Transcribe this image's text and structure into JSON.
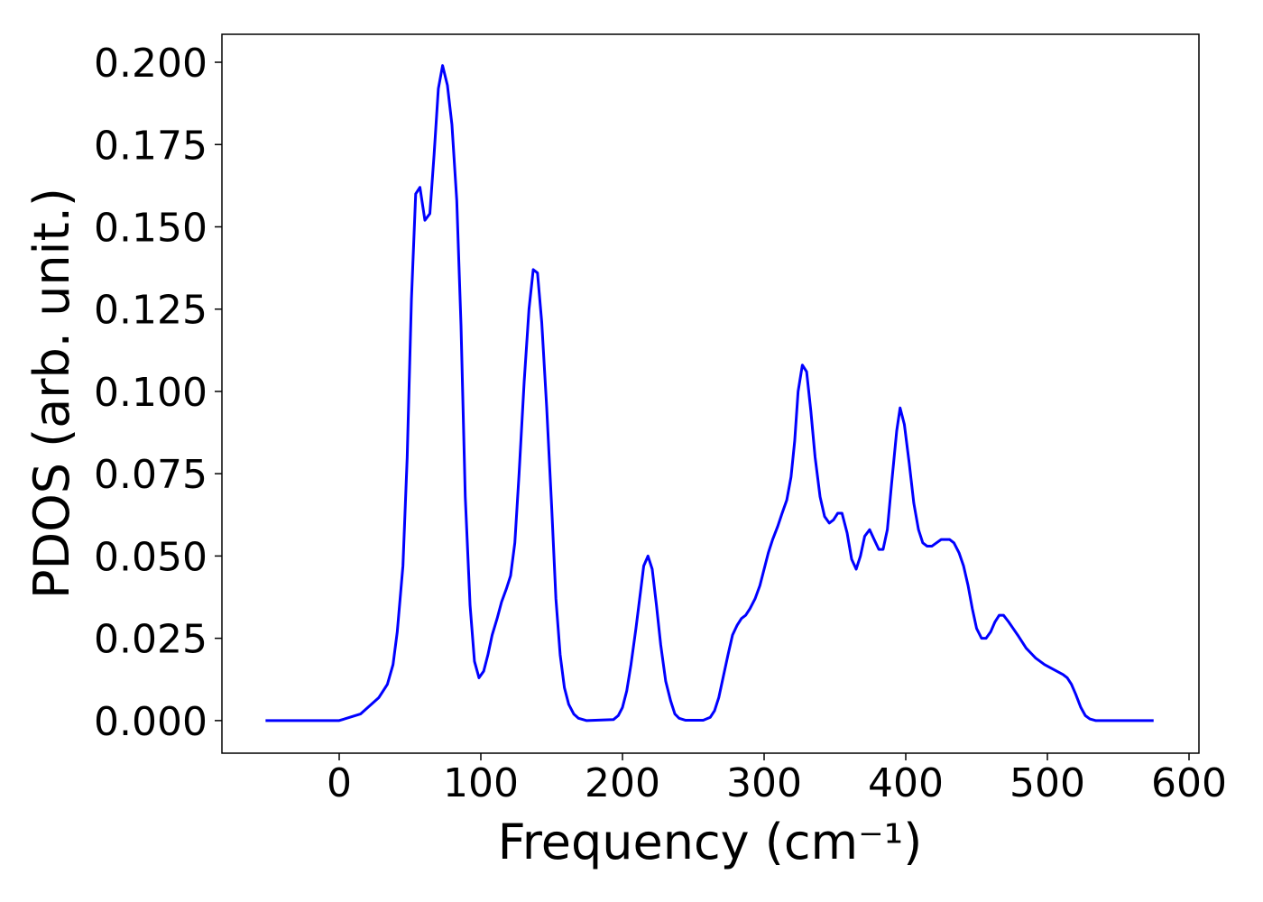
{
  "chart_data": {
    "type": "line",
    "x_label": "Frequency (cm⁻¹)",
    "y_label": "PDOS (arb. unit.)",
    "xlim": [
      -82.8,
      607
    ],
    "ylim": [
      -0.0099,
      0.2085
    ],
    "xticks": [
      0,
      100,
      200,
      300,
      400,
      500,
      600
    ],
    "yticks": [
      {
        "value": 0,
        "label": "0.000"
      },
      {
        "value": 0.025,
        "label": "0.025"
      },
      {
        "value": 0.05,
        "label": "0.050"
      },
      {
        "value": 0.075,
        "label": "0.075"
      },
      {
        "value": 0.1,
        "label": "0.100"
      },
      {
        "value": 0.125,
        "label": "0.125"
      },
      {
        "value": 0.15,
        "label": "0.150"
      },
      {
        "value": 0.175,
        "label": "0.175"
      },
      {
        "value": 0.2,
        "label": "0.200"
      }
    ],
    "grid": false,
    "x": [
      -52,
      -20,
      0,
      15,
      28,
      34,
      38,
      41,
      45,
      48,
      51,
      54,
      57,
      60.5,
      64,
      67,
      70,
      73,
      76.4,
      79.6,
      83,
      86,
      89,
      92.4,
      95.5,
      98.7,
      102,
      105,
      108,
      111.5,
      114.6,
      118,
      121,
      124,
      127,
      130.6,
      134,
      137,
      140,
      143,
      146.5,
      150,
      153,
      156,
      159,
      162,
      165.6,
      169,
      174.5,
      193.6,
      197,
      200,
      203,
      206,
      209.5,
      212.7,
      215,
      218,
      221,
      224,
      227,
      230.5,
      234,
      237,
      240,
      244.6,
      257,
      262,
      265,
      268,
      271,
      274.5,
      277.7,
      281,
      284,
      287,
      290,
      293.6,
      297,
      300,
      303,
      306,
      309.6,
      312.7,
      316,
      319,
      321.6,
      324,
      327,
      330,
      333,
      336,
      339.5,
      342.7,
      346,
      349,
      352,
      355,
      358.6,
      361.8,
      365,
      368,
      371,
      374.5,
      377.7,
      381,
      384,
      387,
      390,
      393.6,
      396,
      399,
      402.5,
      405.7,
      409,
      412,
      415,
      418.5,
      421.7,
      425,
      428,
      431,
      434,
      437.6,
      440.8,
      444,
      447,
      450,
      453.5,
      456.7,
      460,
      463,
      466,
      469,
      472.6,
      475.8,
      479,
      485,
      491.7,
      498,
      504.5,
      511,
      514,
      517,
      520,
      523.6,
      526.8,
      530,
      534,
      575
    ],
    "series": [
      {
        "name": "PDOS",
        "color": "#0000ff",
        "values": [
          0,
          0,
          0,
          0.002,
          0.007,
          0.011,
          0.017,
          0.027,
          0.047,
          0.08,
          0.128,
          0.16,
          0.162,
          0.152,
          0.154,
          0.172,
          0.192,
          0.199,
          0.193,
          0.181,
          0.158,
          0.12,
          0.068,
          0.035,
          0.018,
          0.013,
          0.015,
          0.02,
          0.026,
          0.031,
          0.036,
          0.04,
          0.044,
          0.054,
          0.075,
          0.103,
          0.125,
          0.137,
          0.136,
          0.121,
          0.095,
          0.065,
          0.037,
          0.02,
          0.01,
          0.005,
          0.002,
          0.0007,
          0,
          0.0003,
          0.0015,
          0.004,
          0.009,
          0.017,
          0.028,
          0.039,
          0.047,
          0.05,
          0.046,
          0.035,
          0.023,
          0.012,
          0.006,
          0.002,
          0.0007,
          0.0001,
          0.0001,
          0.001,
          0.003,
          0.007,
          0.013,
          0.02,
          0.026,
          0.029,
          0.031,
          0.032,
          0.034,
          0.037,
          0.041,
          0.046,
          0.051,
          0.055,
          0.059,
          0.063,
          0.067,
          0.074,
          0.085,
          0.1,
          0.108,
          0.106,
          0.094,
          0.08,
          0.068,
          0.062,
          0.06,
          0.061,
          0.063,
          0.063,
          0.057,
          0.049,
          0.046,
          0.05,
          0.056,
          0.058,
          0.055,
          0.052,
          0.052,
          0.058,
          0.072,
          0.088,
          0.095,
          0.09,
          0.078,
          0.066,
          0.058,
          0.054,
          0.053,
          0.053,
          0.054,
          0.055,
          0.055,
          0.055,
          0.054,
          0.051,
          0.047,
          0.041,
          0.034,
          0.028,
          0.025,
          0.025,
          0.027,
          0.03,
          0.032,
          0.032,
          0.03,
          0.028,
          0.026,
          0.022,
          0.019,
          0.017,
          0.0155,
          0.014,
          0.013,
          0.011,
          0.008,
          0.004,
          0.0015,
          0.0005,
          0,
          0
        ]
      }
    ]
  }
}
